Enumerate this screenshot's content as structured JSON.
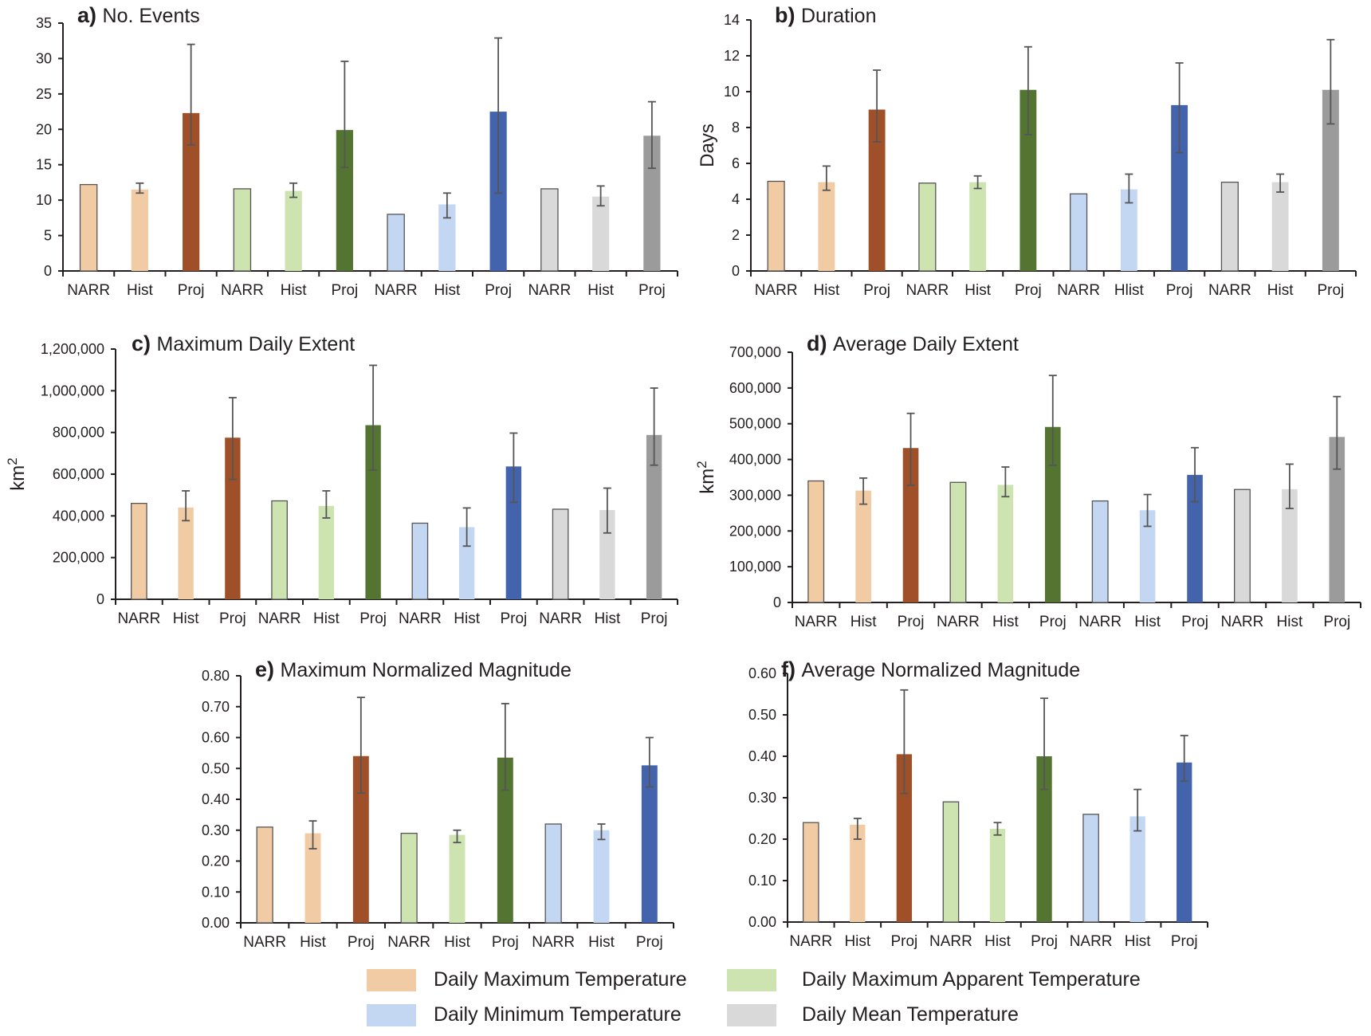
{
  "legend": [
    {
      "label": "Daily Maximum Temperature",
      "color": "#f0cba4"
    },
    {
      "label": "Daily Maximum Apparent Temperature",
      "color": "#cde3b0"
    },
    {
      "label": "Daily Minimum Temperature",
      "color": "#c3d6f2"
    },
    {
      "label": "Daily Mean Temperature",
      "color": "#d9d9d9"
    }
  ],
  "colors": {
    "groups": [
      {
        "light": "#f0cba4",
        "dark": "#a05028"
      },
      {
        "light": "#cde3b0",
        "dark": "#547532"
      },
      {
        "light": "#c3d6f2",
        "dark": "#4463ad"
      },
      {
        "light": "#d9d9d9",
        "dark": "#9b9b9b"
      }
    ],
    "axis": "#231f20",
    "error_bar": "#555555",
    "outline": "#555555"
  },
  "chart_data": [
    {
      "id": "a",
      "type": "bar",
      "panel_letter": "a)",
      "title": "No. Events",
      "ylabel": "",
      "ylim": [
        0,
        35
      ],
      "yticks": [
        "0",
        "5",
        "10",
        "15",
        "20",
        "25",
        "30",
        "35"
      ],
      "ytick_values": [
        0,
        5,
        10,
        15,
        20,
        25,
        30,
        35
      ],
      "categories": [
        "NARR",
        "Hist",
        "Proj",
        "NARR",
        "Hist",
        "Proj",
        "NARR",
        "Hist",
        "Proj",
        "NARR",
        "Hist",
        "Proj"
      ],
      "series_groups": [
        "Daily Maximum Temperature",
        "Daily Maximum Apparent Temperature",
        "Daily Minimum Temperature",
        "Daily Mean Temperature"
      ],
      "values": [
        12.2,
        11.5,
        22.3,
        11.6,
        11.3,
        19.9,
        8.0,
        9.4,
        22.5,
        11.6,
        10.5,
        19.1
      ],
      "error_low": [
        null,
        11.0,
        17.8,
        null,
        10.4,
        14.6,
        null,
        7.5,
        11.0,
        null,
        9.2,
        14.5
      ],
      "error_high": [
        null,
        12.4,
        32.0,
        null,
        12.4,
        29.6,
        null,
        11.0,
        32.9,
        null,
        12.0,
        23.9
      ],
      "grid": false
    },
    {
      "id": "b",
      "type": "bar",
      "panel_letter": "b)",
      "title": "Duration",
      "ylabel": "Days",
      "ylim": [
        0,
        14
      ],
      "yticks": [
        "0",
        "2",
        "4",
        "6",
        "8",
        "10",
        "12",
        "14"
      ],
      "ytick_values": [
        0,
        2,
        4,
        6,
        8,
        10,
        12,
        14
      ],
      "categories": [
        "NARR",
        "Hist",
        "Proj",
        "NARR",
        "Hist",
        "Proj",
        "NARR",
        "Hlist",
        "Proj",
        "NARR",
        "Hist",
        "Proj"
      ],
      "series_groups": [
        "Daily Maximum Temperature",
        "Daily Maximum Apparent Temperature",
        "Daily Minimum Temperature",
        "Daily Mean Temperature"
      ],
      "values": [
        5.0,
        4.95,
        9.0,
        4.9,
        4.95,
        10.1,
        4.3,
        4.55,
        9.25,
        4.95,
        4.95,
        10.1
      ],
      "error_low": [
        null,
        4.5,
        7.2,
        null,
        4.6,
        7.6,
        null,
        3.8,
        6.6,
        null,
        4.4,
        8.2
      ],
      "error_high": [
        null,
        5.85,
        11.2,
        null,
        5.3,
        12.5,
        null,
        5.4,
        11.6,
        null,
        5.4,
        12.9
      ],
      "grid": false
    },
    {
      "id": "c",
      "type": "bar",
      "panel_letter": "c)",
      "title": "Maximum Daily  Extent",
      "ylabel": "km",
      "ylabel_sup": "2",
      "ylim": [
        0,
        1200000
      ],
      "yticks": [
        "0",
        "200,000",
        "400,000",
        "600,000",
        "800,000",
        "1,000,000",
        "1,200,000"
      ],
      "ytick_values": [
        0,
        200000,
        400000,
        600000,
        800000,
        1000000,
        1200000
      ],
      "categories": [
        "NARR",
        "Hist",
        "Proj",
        "NARR",
        "Hist",
        "Proj",
        "NARR",
        "Hist",
        "Proj",
        "NARR",
        "Hist",
        "Proj"
      ],
      "series_groups": [
        "Daily Maximum Temperature",
        "Daily Maximum Apparent Temperature",
        "Daily Minimum Temperature",
        "Daily Mean Temperature"
      ],
      "values": [
        460000,
        440000,
        775000,
        472000,
        448000,
        835000,
        365000,
        346000,
        637000,
        432000,
        428000,
        788000
      ],
      "error_low": [
        null,
        377000,
        575000,
        null,
        390000,
        620000,
        null,
        255000,
        465000,
        null,
        318000,
        643000
      ],
      "error_high": [
        null,
        520000,
        967000,
        null,
        520000,
        1122000,
        null,
        438000,
        797000,
        null,
        533000,
        1013000
      ],
      "grid": false
    },
    {
      "id": "d",
      "type": "bar",
      "panel_letter": "d)",
      "title": "Average Daily  Extent",
      "ylabel": "km",
      "ylabel_sup": "2",
      "ylim": [
        0,
        700000
      ],
      "yticks": [
        "0",
        "100,000",
        "200,000",
        "300,000",
        "400,000",
        "500,000",
        "600,000",
        "700,000"
      ],
      "ytick_values": [
        0,
        100000,
        200000,
        300000,
        400000,
        500000,
        600000,
        700000
      ],
      "categories": [
        "NARR",
        "Hist",
        "Proj",
        "NARR",
        "Hist",
        "Proj",
        "NARR",
        "Hist",
        "Proj",
        "NARR",
        "Hist",
        "Proj"
      ],
      "series_groups": [
        "Daily Maximum Temperature",
        "Daily Maximum Apparent Temperature",
        "Daily Minimum Temperature",
        "Daily Mean Temperature"
      ],
      "values": [
        340000,
        313000,
        432000,
        336000,
        329000,
        491000,
        284000,
        258000,
        357000,
        316000,
        317000,
        463000
      ],
      "error_low": [
        null,
        275000,
        328000,
        null,
        296000,
        384000,
        null,
        213000,
        282000,
        null,
        263000,
        373000
      ],
      "error_high": [
        null,
        348000,
        529000,
        null,
        379000,
        635000,
        null,
        302000,
        433000,
        null,
        387000,
        576000
      ],
      "grid": false
    },
    {
      "id": "e",
      "type": "bar",
      "panel_letter": "e)",
      "title": "Maximum Normalized Magnitude",
      "ylabel": "",
      "ylim": [
        0,
        0.8
      ],
      "yticks": [
        "0.00",
        "0.10",
        "0.20",
        "0.30",
        "0.40",
        "0.50",
        "0.60",
        "0.70",
        "0.80"
      ],
      "ytick_values": [
        0,
        0.1,
        0.2,
        0.3,
        0.4,
        0.5,
        0.6,
        0.7,
        0.8
      ],
      "categories": [
        "NARR",
        "Hist",
        "Proj",
        "NARR",
        "Hist",
        "Proj",
        "NARR",
        "Hist",
        "Proj"
      ],
      "series_groups": [
        "Daily Maximum Temperature",
        "Daily Maximum Apparent Temperature",
        "Daily Minimum Temperature"
      ],
      "values": [
        0.31,
        0.29,
        0.54,
        0.29,
        0.285,
        0.535,
        0.32,
        0.3,
        0.51
      ],
      "error_low": [
        null,
        0.24,
        0.42,
        null,
        0.26,
        0.43,
        null,
        0.27,
        0.44
      ],
      "error_high": [
        null,
        0.33,
        0.73,
        null,
        0.3,
        0.71,
        null,
        0.32,
        0.6
      ],
      "grid": false
    },
    {
      "id": "f",
      "type": "bar",
      "panel_letter": "f)",
      "title": "Average Normalized Magnitude",
      "ylabel": "",
      "ylim": [
        0,
        0.6
      ],
      "yticks": [
        "0.00",
        "0.10",
        "0.20",
        "0.30",
        "0.40",
        "0.50",
        "0.60"
      ],
      "ytick_values": [
        0,
        0.1,
        0.2,
        0.3,
        0.4,
        0.5,
        0.6
      ],
      "categories": [
        "NARR",
        "Hist",
        "Proj",
        "NARR",
        "Hist",
        "Proj",
        "NARR",
        "Hist",
        "Proj"
      ],
      "series_groups": [
        "Daily Maximum Temperature",
        "Daily Maximum Apparent Temperature",
        "Daily Minimum Temperature"
      ],
      "values": [
        0.24,
        0.235,
        0.405,
        0.29,
        0.225,
        0.4,
        0.26,
        0.255,
        0.385
      ],
      "error_low": [
        null,
        0.2,
        0.31,
        null,
        0.21,
        0.32,
        null,
        0.22,
        0.34
      ],
      "error_high": [
        null,
        0.25,
        0.56,
        null,
        0.24,
        0.54,
        null,
        0.32,
        0.45
      ],
      "grid": false
    }
  ]
}
